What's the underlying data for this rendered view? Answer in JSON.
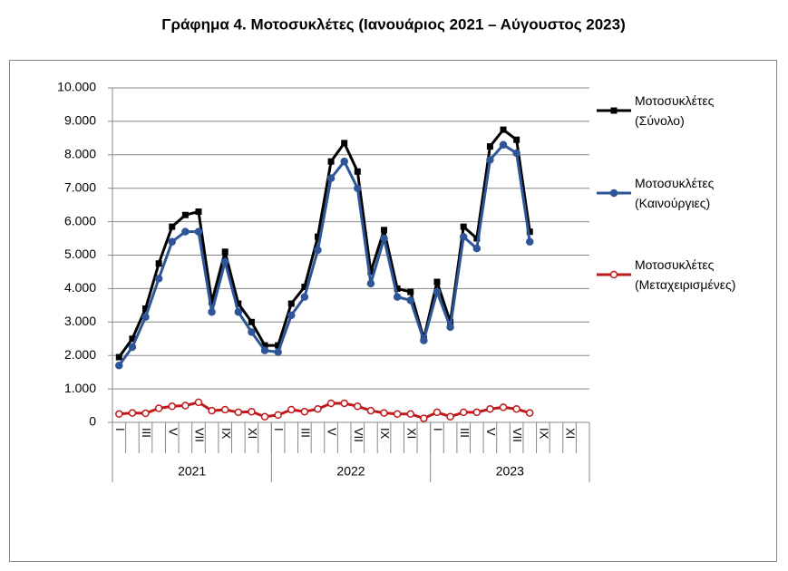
{
  "chart_data": {
    "type": "line",
    "title": "Γράφημα 4. Μοτοσυκλέτες (Ιανουάριος 2021 – Αύγουστος 2023)",
    "categories": [
      "I",
      null,
      "III",
      null,
      "V",
      null,
      "VII",
      null,
      "IX",
      null,
      "XI",
      null,
      "I",
      null,
      "III",
      null,
      "V",
      null,
      "VII",
      null,
      "IX",
      null,
      "XI",
      null,
      "I",
      null,
      "III",
      null,
      "V",
      null,
      "VII",
      null,
      "IX",
      null,
      "XI",
      null
    ],
    "x_groups": [
      "2021",
      "2022",
      "2023"
    ],
    "ylim": [
      0,
      10000
    ],
    "yticks": [
      0,
      {
        "value": 1000,
        "label": "1.000"
      },
      {
        "value": 2000,
        "label": "2.000"
      },
      {
        "value": 3000,
        "label": "3.000"
      },
      {
        "value": 4000,
        "label": "4.000"
      },
      {
        "value": 5000,
        "label": "5.000"
      },
      {
        "value": 6000,
        "label": "6.000"
      },
      {
        "value": 7000,
        "label": "7.000"
      },
      {
        "value": 8000,
        "label": "8.000"
      },
      {
        "value": 9000,
        "label": "9.000"
      },
      {
        "value": 10000,
        "label": "10.000"
      }
    ],
    "grid": true,
    "legend": "right",
    "series": [
      {
        "name": "Μοτοσυκλέτες (Σύνολο)",
        "color": "#000000",
        "marker": "square",
        "values": [
          1950,
          2500,
          3400,
          4750,
          5850,
          6200,
          6300,
          3600,
          5100,
          3550,
          3000,
          2300,
          2300,
          3550,
          4050,
          5550,
          7800,
          8350,
          7500,
          4500,
          5750,
          4000,
          3900,
          2500,
          4200,
          3000,
          5850,
          5500,
          8250,
          8750,
          8450,
          5700,
          null,
          null,
          null,
          null
        ]
      },
      {
        "name": "Μοτοσυκλέτες (Καινούργιες)",
        "color": "#2e5597",
        "marker": "circle",
        "values": [
          1700,
          2250,
          3150,
          4300,
          5400,
          5700,
          5700,
          3300,
          4800,
          3300,
          2700,
          2150,
          2100,
          3200,
          3750,
          5150,
          7300,
          7800,
          7000,
          4150,
          5500,
          3750,
          3650,
          2450,
          3900,
          2850,
          5550,
          5200,
          7850,
          8300,
          8050,
          5400,
          null,
          null,
          null,
          null
        ]
      },
      {
        "name": "Μοτοσυκλέτες (Μεταχειρισμένες)",
        "color": "#c0191c",
        "marker": "open-circle",
        "values": [
          250,
          280,
          270,
          420,
          480,
          500,
          600,
          350,
          380,
          300,
          320,
          170,
          220,
          380,
          320,
          400,
          570,
          570,
          480,
          350,
          280,
          250,
          250,
          120,
          300,
          170,
          300,
          300,
          400,
          450,
          400,
          280,
          null,
          null,
          null,
          null
        ]
      }
    ]
  }
}
